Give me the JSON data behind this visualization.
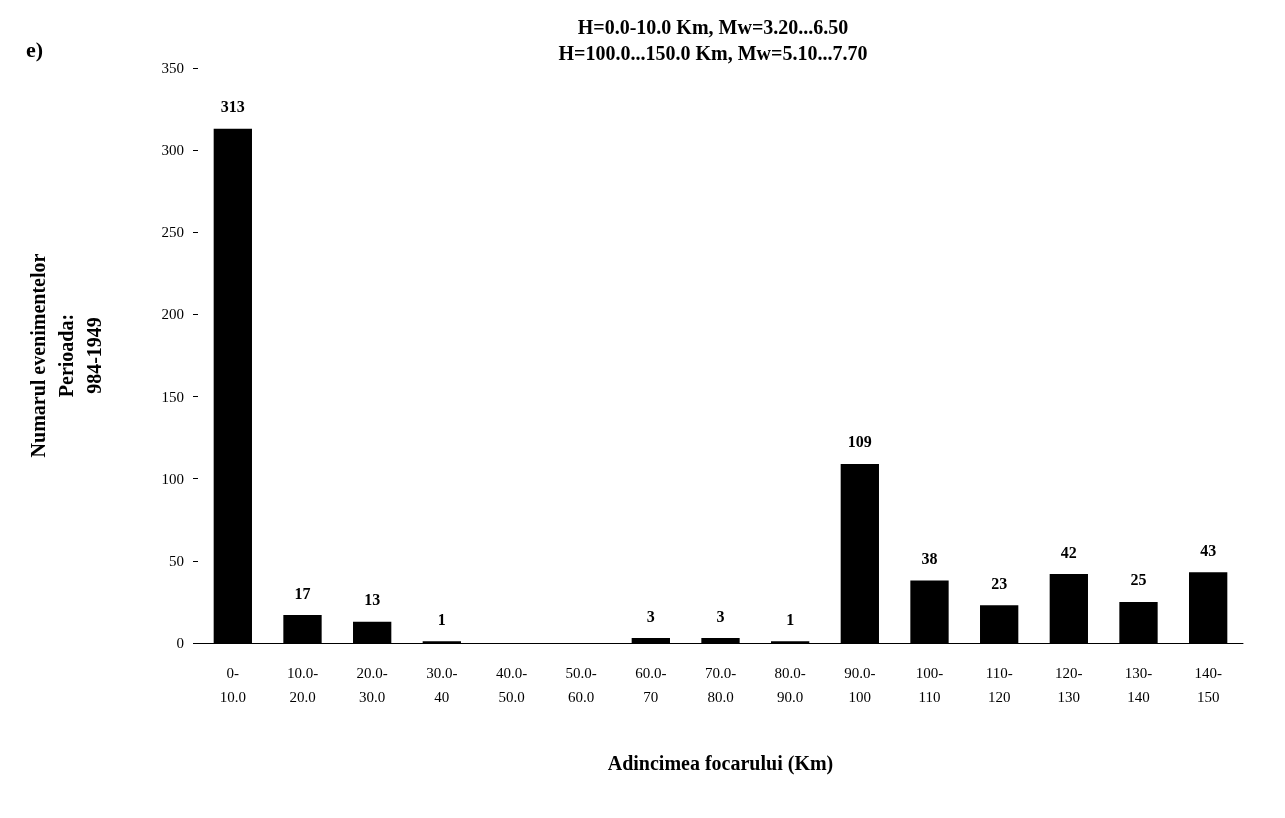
{
  "chart_data": {
    "type": "bar",
    "title": "H=0.0-10.0 Km, Mw=3.20...6.50",
    "subtitle": "H=100.0...150.0 Km, Mw=5.10...7.70",
    "xlabel": "Adincimea focarului (Km)",
    "ylabel": "Numarul evenimentelor\nPerioada:\n984-1949",
    "annotations": [
      "e)"
    ],
    "categories": [
      "0-10.0",
      "10.0-20.0",
      "20.0-30.0",
      "30.0-40",
      "40.0-50.0",
      "50.0-60.0",
      "60.0-70",
      "70.0-80.0",
      "80.0-90.0",
      "90.0-100",
      "100-110",
      "110-120",
      "120-130",
      "130-140",
      "140-150"
    ],
    "values": [
      313,
      17,
      13,
      1,
      0,
      0,
      3,
      3,
      1,
      109,
      38,
      23,
      42,
      25,
      43
    ],
    "value_labels": [
      "313",
      "17",
      "13",
      "1",
      null,
      null,
      "3",
      "3",
      "1",
      "109",
      "38",
      "23",
      "42",
      "25",
      "43"
    ],
    "color": "#000000",
    "ylim": [
      0,
      350
    ],
    "yticks": [
      0,
      50,
      100,
      150,
      200,
      250,
      300,
      350
    ],
    "grid": false
  }
}
